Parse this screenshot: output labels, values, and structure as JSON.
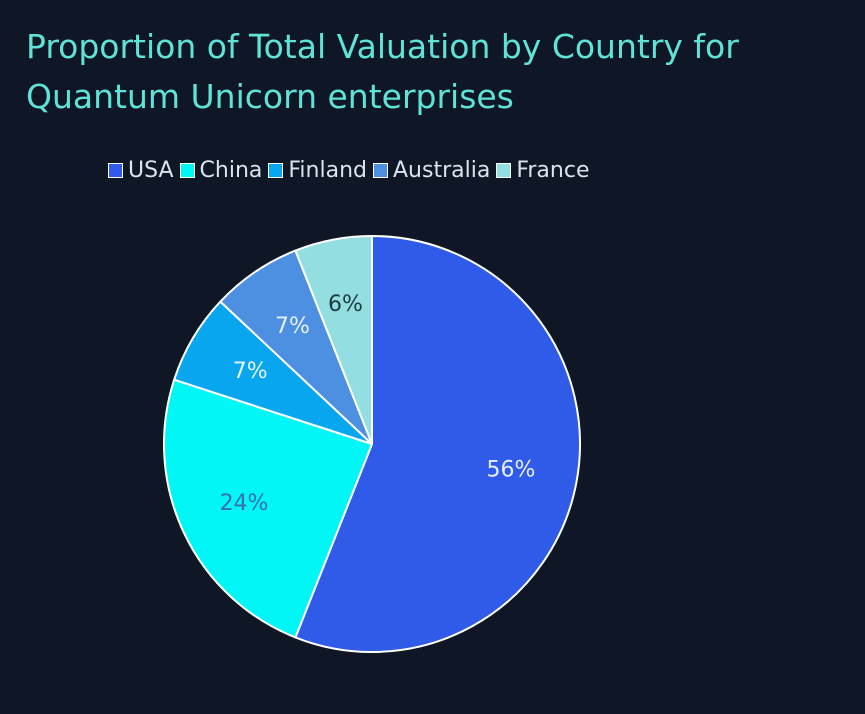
{
  "chart_data": {
    "type": "pie",
    "title": "Proportion of Total Valuation by Country for Quantum Unicorn enterprises",
    "legend_position": "top",
    "slices": [
      {
        "label": "USA",
        "value": 56,
        "display": "56%",
        "color": "#2f5be8",
        "text_color": "#e6eeff"
      },
      {
        "label": "China",
        "value": 24,
        "display": "24%",
        "color": "#00f7f5",
        "text_color": "#3a6fae"
      },
      {
        "label": "Finland",
        "value": 7,
        "display": "7%",
        "color": "#08a6ef",
        "text_color": "#e6f6ff"
      },
      {
        "label": "Australia",
        "value": 7,
        "display": "7%",
        "color": "#4d8fe0",
        "text_color": "#e6f0ff"
      },
      {
        "label": "France",
        "value": 6,
        "display": "6%",
        "color": "#93dee0",
        "text_color": "#1e3b44"
      }
    ]
  }
}
